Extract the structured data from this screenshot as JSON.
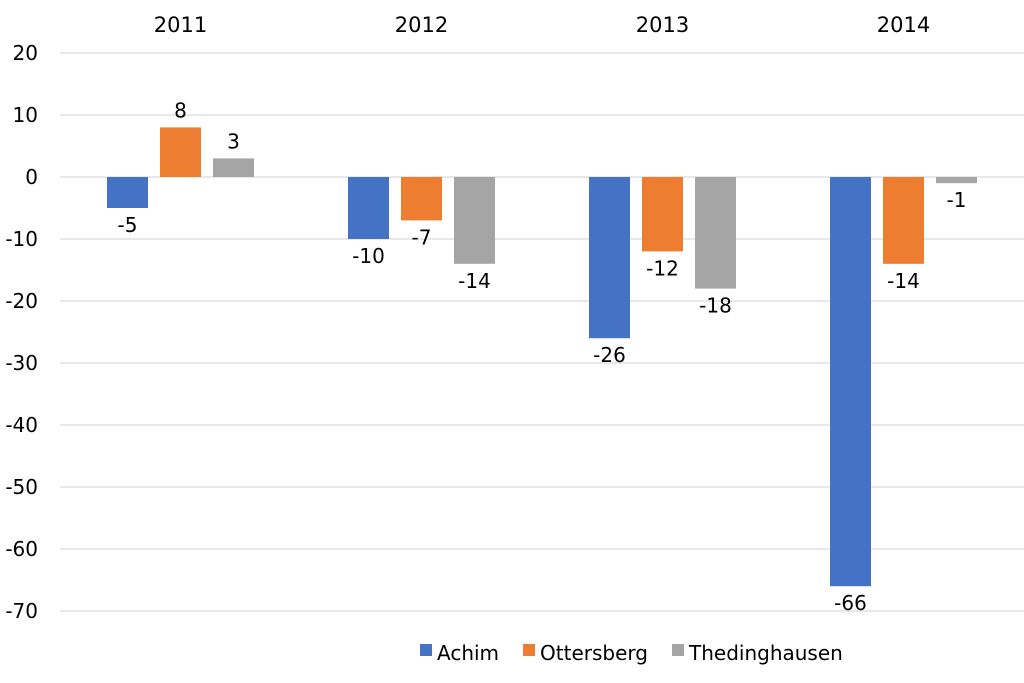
{
  "chart_data": {
    "type": "bar",
    "categories": [
      "2011",
      "2012",
      "2013",
      "2014"
    ],
    "series": [
      {
        "name": "Achim",
        "color": "#4472C4",
        "values": [
          -5,
          -10,
          -26,
          -66
        ]
      },
      {
        "name": "Ottersberg",
        "color": "#ED7D31",
        "values": [
          8,
          -7,
          -12,
          -14
        ]
      },
      {
        "name": "Thedinghausen",
        "color": "#A5A5A5",
        "values": [
          3,
          -14,
          -18,
          -1
        ]
      }
    ],
    "ylim": [
      -70,
      20
    ],
    "yticks": [
      20,
      10,
      0,
      -10,
      -20,
      -30,
      -40,
      -50,
      -60,
      -70
    ],
    "grid": true,
    "category_labels_position": "top",
    "legend_position": "bottom-right",
    "data_labels": true
  }
}
